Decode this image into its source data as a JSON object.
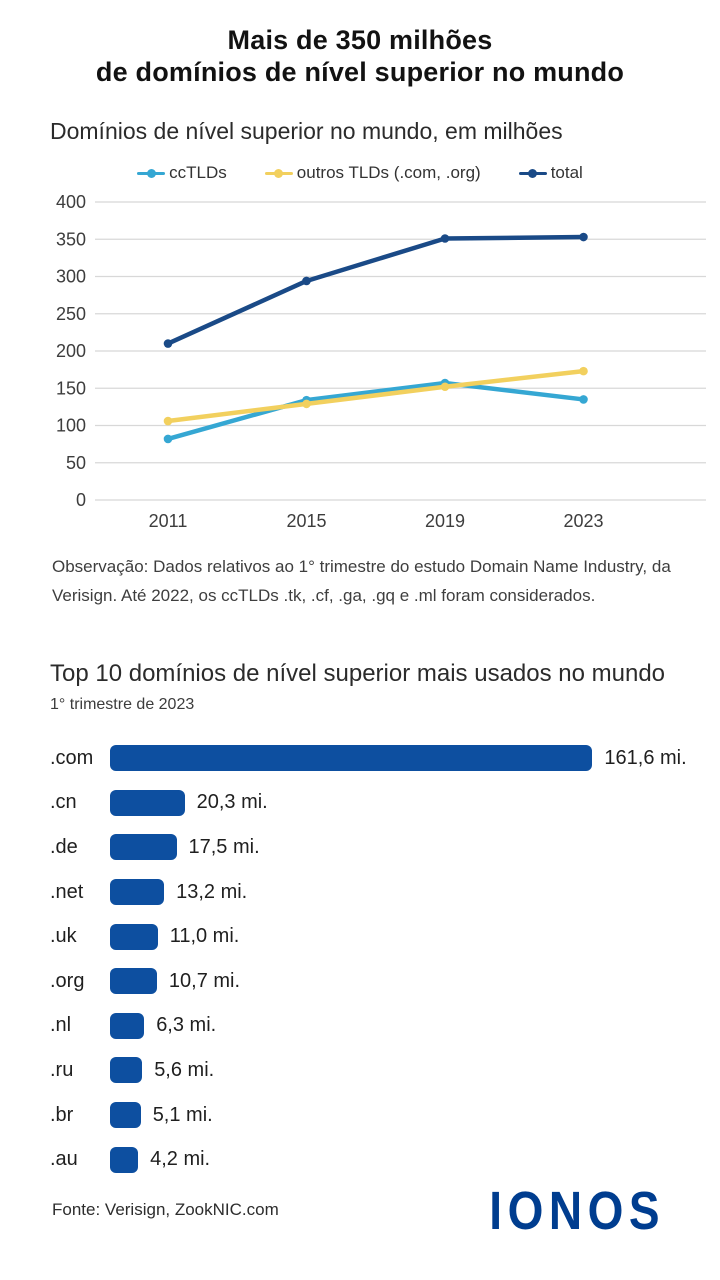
{
  "page": {
    "title_line1": "Mais de 350 milhões",
    "title_line2": "de domínios de nível superior no mundo",
    "footer_source": "Fonte: Verisign, ZookNIC.com",
    "brand": "IONOS",
    "brand_color": "#003d8f"
  },
  "chart_data": [
    {
      "type": "line",
      "title": "Domínios de nível superior no mundo, em milhões",
      "x": [
        "2011",
        "2015",
        "2019",
        "2023"
      ],
      "series": [
        {
          "name": "ccTLDs",
          "color": "#35a7d3",
          "values": [
            82,
            134,
            157,
            135
          ]
        },
        {
          "name": "outros TLDs (.com, .org)",
          "color": "#f2d05e",
          "values": [
            106,
            129,
            152,
            173
          ]
        },
        {
          "name": "total",
          "color": "#1a4a87",
          "values": [
            210,
            294,
            351,
            353
          ]
        }
      ],
      "ylim": [
        0,
        400
      ],
      "ytick_step": 50,
      "grid": true,
      "legend_position": "top",
      "grid_color": "#d8d8d8",
      "axis_text_color": "#3d3d3d",
      "note": "Observação: Dados relativos ao 1° trimestre do estudo Domain Name Industry, da Verisign. Até 2022, os ccTLDs .tk, .cf, .ga, .gq e .ml foram considerados."
    },
    {
      "type": "bar",
      "orientation": "horizontal",
      "title": "Top 10 domínios de nível superior mais usados no mundo",
      "subtitle": "1° trimestre de 2023",
      "categories": [
        ".com",
        ".cn",
        ".de",
        ".net",
        ".uk",
        ".org",
        ".nl",
        ".ru",
        ".br",
        ".au"
      ],
      "values": [
        161.6,
        20.3,
        17.5,
        13.2,
        11.0,
        10.7,
        6.3,
        5.6,
        5.1,
        4.2
      ],
      "value_labels": [
        "161,6 mi.",
        "20,3 mi.",
        "17,5 mi.",
        "13,2 mi.",
        "11,0 mi.",
        "10,7 mi.",
        "6,3 mi.",
        "5,6 mi.",
        "5,1 mi.",
        "4,2 mi."
      ],
      "bar_color": "#0d4fa0",
      "xlabel": "",
      "ylabel": ""
    }
  ]
}
